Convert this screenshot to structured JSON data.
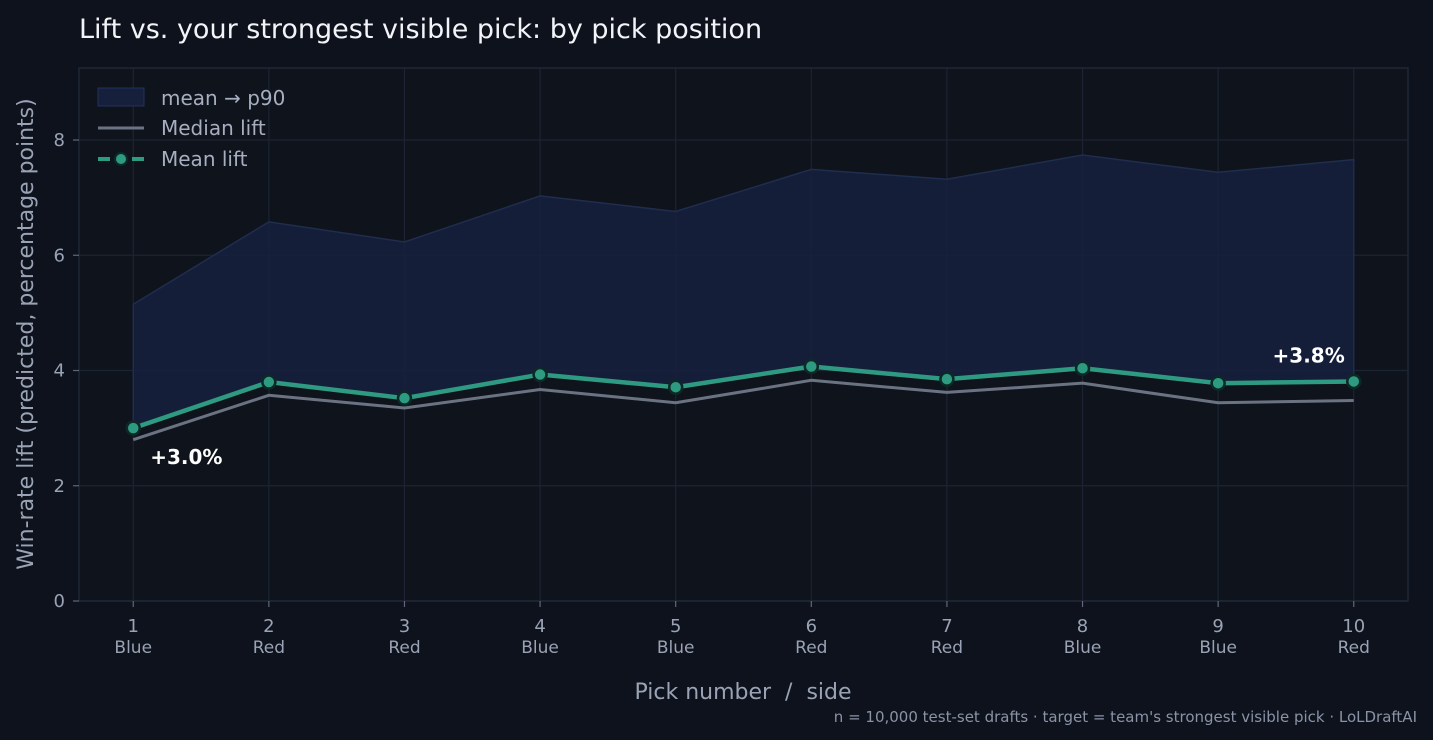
{
  "chart_data": {
    "type": "line",
    "title": "Lift vs. your strongest visible pick: by pick position",
    "xlabel": "Pick number  /  side",
    "ylabel": "Win-rate lift (predicted, percentage points)",
    "x": [
      1,
      2,
      3,
      4,
      5,
      6,
      7,
      8,
      9,
      10
    ],
    "x_tick_labels": [
      "1",
      "2",
      "3",
      "4",
      "5",
      "6",
      "7",
      "8",
      "9",
      "10"
    ],
    "x_tick_sublabels": [
      "Blue",
      "Red",
      "Red",
      "Blue",
      "Blue",
      "Red",
      "Red",
      "Blue",
      "Blue",
      "Red"
    ],
    "xlim": [
      0.6,
      10.4
    ],
    "ylim": [
      0,
      9.25
    ],
    "y_ticks": [
      0,
      2,
      4,
      6,
      8
    ],
    "grid": true,
    "legend_position": "top-left",
    "band": {
      "name": "mean → p90",
      "lower": "mean",
      "upper": [
        5.15,
        6.58,
        6.23,
        7.03,
        6.76,
        7.49,
        7.32,
        7.74,
        7.44,
        7.66
      ]
    },
    "series": [
      {
        "name": "Median lift",
        "values": [
          2.8,
          3.57,
          3.35,
          3.67,
          3.44,
          3.83,
          3.62,
          3.78,
          3.44,
          3.48
        ]
      },
      {
        "name": "Mean lift",
        "values": [
          3.0,
          3.8,
          3.52,
          3.93,
          3.71,
          4.07,
          3.85,
          4.04,
          3.78,
          3.81
        ]
      }
    ],
    "annotations": [
      {
        "text": "+3.0%",
        "x": 1,
        "y": 3.0
      },
      {
        "text": "+3.8%",
        "x": 10,
        "y": 3.81
      }
    ],
    "footnote": "n = 10,000 test-set drafts · target = team's strongest visible pick · LoLDraftAI",
    "colors": {
      "background": "#0d121c",
      "plot_background": "#0f131b",
      "band": "#16203d",
      "band_edge": "#1f2d4e",
      "median": "#6b7383",
      "mean": "#2f9a82",
      "marker_edge": "#0b2a26",
      "grid": "#1c2433"
    }
  }
}
